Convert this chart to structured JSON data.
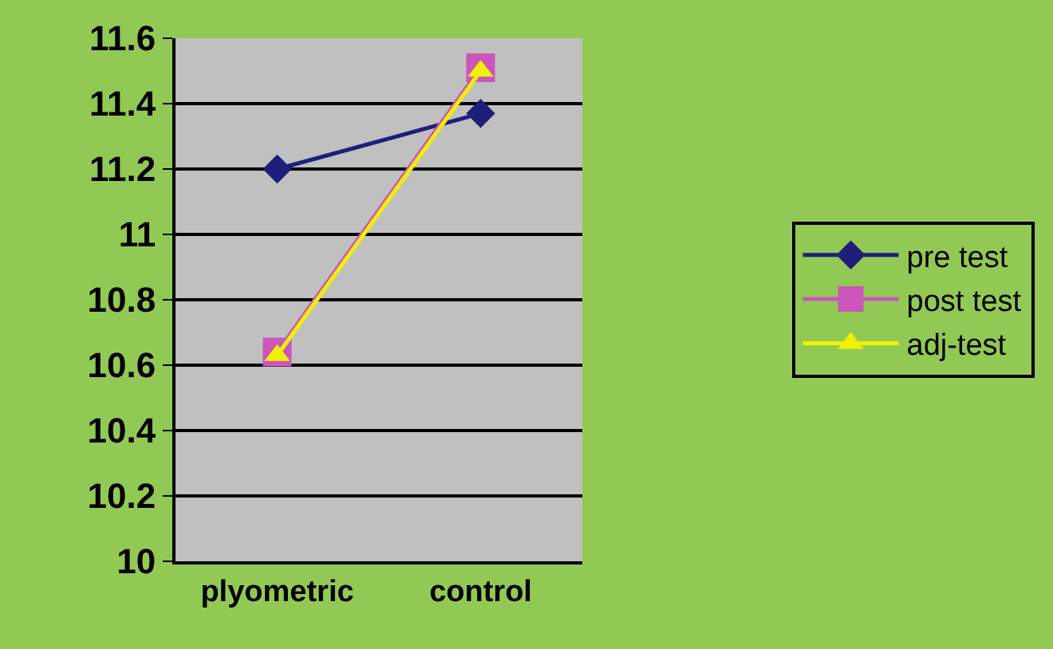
{
  "chart_data": {
    "type": "line",
    "categories": [
      "plyometric",
      "control"
    ],
    "series": [
      {
        "name": "pre test",
        "color": "#1f1f7a",
        "marker": "diamond",
        "values": [
          11.2,
          11.37
        ]
      },
      {
        "name": "post test",
        "color": "#cc55bb",
        "marker": "square",
        "values": [
          10.64,
          11.51
        ]
      },
      {
        "name": "adj-test",
        "color": "#f0f000",
        "marker": "triangle",
        "values": [
          10.63,
          11.5
        ]
      }
    ],
    "ylim": [
      10,
      11.6
    ],
    "yticks": [
      10,
      10.2,
      10.4,
      10.6,
      10.8,
      11,
      11.2,
      11.4,
      11.6
    ],
    "grid": "y",
    "legend": "right"
  }
}
